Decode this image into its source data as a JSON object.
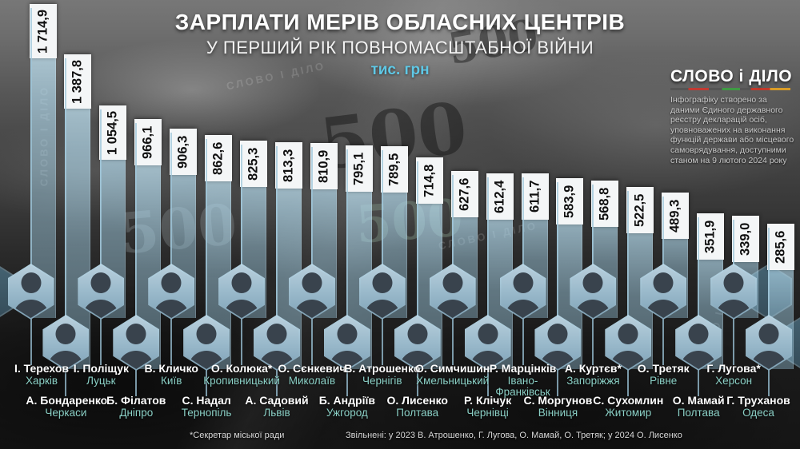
{
  "header": {
    "title": "ЗАРПЛАТИ МЕРІВ ОБЛАСНИХ ЦЕНТРІВ",
    "subtitle": "У ПЕРШИЙ РІК ПОВНОМАСШТАБНОЇ ВІЙНИ"
  },
  "logo": {
    "text": "СЛОВО і ДІЛО",
    "source_note": "Інфографіку створено за даними Єдиного державного реєстру декларацій осіб, уповноважених на виконання функцій держави або місцевого самоврядування, доступними станом на 9 лютого 2024 року"
  },
  "background": {
    "watermark": "СЛОВО І ДІЛО",
    "banknote_numeral": "500"
  },
  "footer": {
    "footnote": "*Секретар міської ради",
    "dismissed_note": "Звільнені: у 2023 В. Атрошенко, Г. Лугова, О. Мамай, О. Третяк; у 2024 О. Лисенко"
  },
  "colors": {
    "accent_cyan": "#5fc8e6",
    "city_teal": "#8bd0c6",
    "bar_blue": "#a9d3e8",
    "label_bg": "#f4f6f7"
  },
  "chart_data": {
    "type": "bar",
    "orientation": "vertical",
    "title": "ЗАРПЛАТИ МЕРІВ ОБЛАСНИХ ЦЕНТРІВ",
    "subtitle": "У ПЕРШИЙ РІК ПОВНОМАСШТАБНОЇ ВІЙНИ",
    "unit": "тис. грн",
    "ylim": [
      0,
      1750
    ],
    "value_labels_rotated": true,
    "bars": [
      {
        "mayor": "І. Терехов",
        "city": "Харків",
        "value": 1714.9,
        "label": "1 714,9",
        "photo_row": "top"
      },
      {
        "mayor": "А. Бондаренко",
        "city": "Черкаси",
        "value": 1387.8,
        "label": "1 387,8",
        "photo_row": "bottom"
      },
      {
        "mayor": "І. Поліщук",
        "city": "Луцьк",
        "value": 1054.5,
        "label": "1 054,5",
        "photo_row": "top"
      },
      {
        "mayor": "Б. Філатов",
        "city": "Дніпро",
        "value": 966.1,
        "label": "966,1",
        "photo_row": "bottom"
      },
      {
        "mayor": "В. Кличко",
        "city": "Київ",
        "value": 906.3,
        "label": "906,3",
        "photo_row": "top"
      },
      {
        "mayor": "С. Надал",
        "city": "Тернопіль",
        "value": 862.6,
        "label": "862,6",
        "photo_row": "bottom"
      },
      {
        "mayor": "О. Колюка*",
        "city": "Кропивницький",
        "value": 825.3,
        "label": "825,3",
        "photo_row": "top"
      },
      {
        "mayor": "А. Садовий",
        "city": "Львів",
        "value": 813.3,
        "label": "813,3",
        "photo_row": "bottom"
      },
      {
        "mayor": "О. Сєнкевич",
        "city": "Миколаїв",
        "value": 810.9,
        "label": "810,9",
        "photo_row": "top"
      },
      {
        "mayor": "Б. Андріїв",
        "city": "Ужгород",
        "value": 795.1,
        "label": "795,1",
        "photo_row": "bottom"
      },
      {
        "mayor": "В. Атрошенко",
        "city": "Чернігів",
        "value": 789.5,
        "label": "789,5",
        "photo_row": "top"
      },
      {
        "mayor": "О. Лисенко",
        "city": "Полтава",
        "value": 714.8,
        "label": "714,8",
        "photo_row": "bottom"
      },
      {
        "mayor": "О. Симчишин",
        "city": "Хмельницький",
        "value": 627.6,
        "label": "627,6",
        "photo_row": "top"
      },
      {
        "mayor": "Р. Клічук",
        "city": "Чернівці",
        "value": 612.4,
        "label": "612,4",
        "photo_row": "bottom"
      },
      {
        "mayor": "Р. Марцінків",
        "city": "Івано-Франківськ",
        "value": 611.7,
        "label": "611,7",
        "photo_row": "top"
      },
      {
        "mayor": "С. Моргунов",
        "city": "Вінниця",
        "value": 583.9,
        "label": "583,9",
        "photo_row": "bottom"
      },
      {
        "mayor": "А. Куртєв*",
        "city": "Запоріжжя",
        "value": 568.8,
        "label": "568,8",
        "photo_row": "top"
      },
      {
        "mayor": "С. Сухомлин",
        "city": "Житомир",
        "value": 522.5,
        "label": "522,5",
        "photo_row": "bottom"
      },
      {
        "mayor": "О. Третяк",
        "city": "Рівне",
        "value": 489.3,
        "label": "489,3",
        "photo_row": "top"
      },
      {
        "mayor": "О. Мамай",
        "city": "Полтава",
        "value": 351.9,
        "label": "351,9",
        "photo_row": "bottom"
      },
      {
        "mayor": "Г. Лугова*",
        "city": "Херсон",
        "value": 339.0,
        "label": "339,0",
        "photo_row": "top"
      },
      {
        "mayor": "Г. Труханов",
        "city": "Одеса",
        "value": 285.6,
        "label": "285,6",
        "photo_row": "bottom"
      }
    ]
  }
}
